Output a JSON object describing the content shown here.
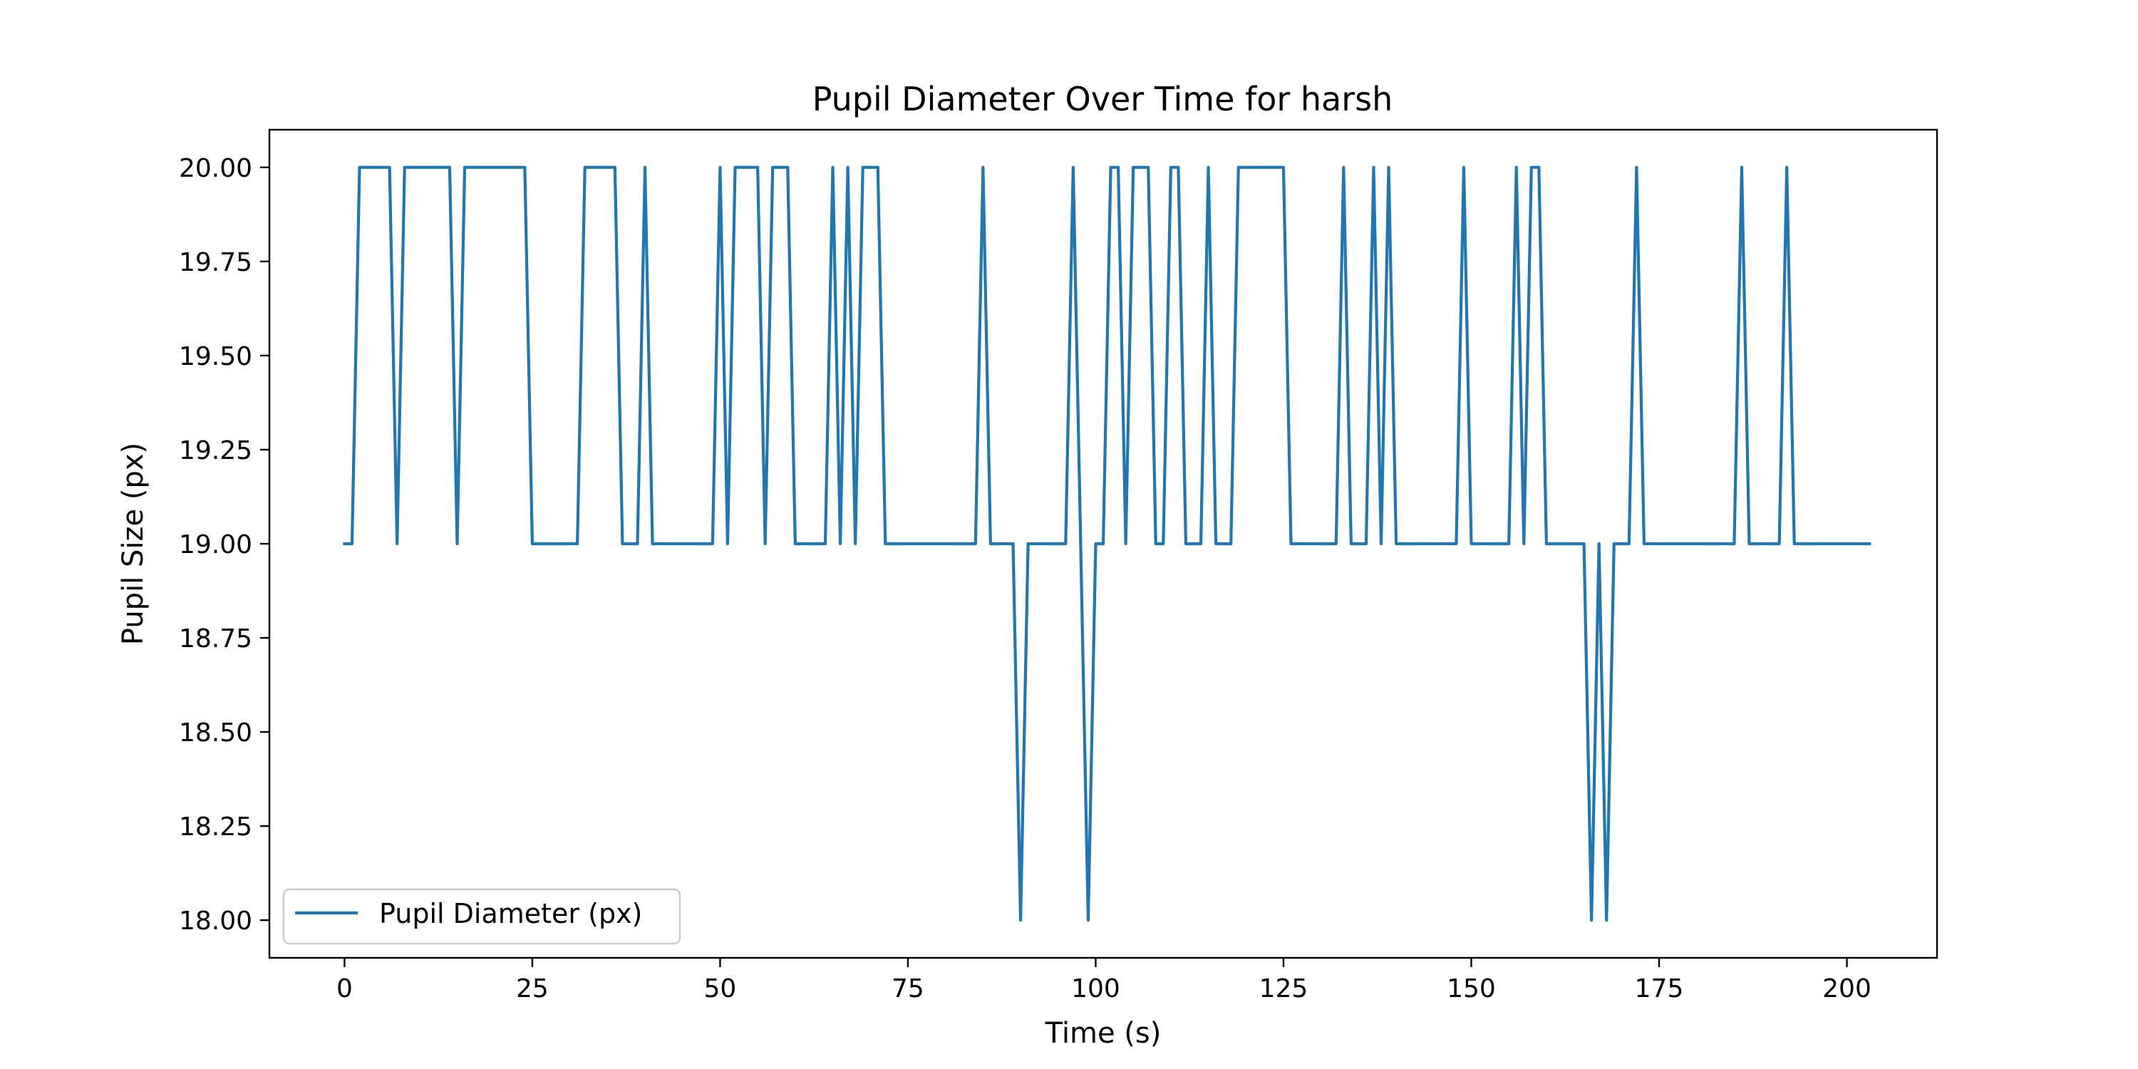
{
  "chart_data": {
    "type": "line",
    "title": "Pupil Diameter Over Time for harsh",
    "xlabel": "Time (s)",
    "ylabel": "Pupil Size (px)",
    "xlim": [
      -10,
      212
    ],
    "ylim": [
      17.9,
      20.1
    ],
    "xticks": [
      0,
      25,
      50,
      75,
      100,
      125,
      150,
      175,
      200
    ],
    "yticks": [
      18.0,
      18.25,
      18.5,
      18.75,
      19.0,
      19.25,
      19.5,
      19.75,
      20.0
    ],
    "xtick_labels": [
      "0",
      "25",
      "50",
      "75",
      "100",
      "125",
      "150",
      "175",
      "200"
    ],
    "ytick_labels": [
      "18.00",
      "18.25",
      "18.50",
      "18.75",
      "19.00",
      "19.25",
      "19.50",
      "19.75",
      "20.00"
    ],
    "grid": false,
    "legend": "lower-left",
    "line_color": "#1f77b4",
    "series": [
      {
        "name": "Pupil Diameter (px)",
        "values": [
          19,
          19,
          20,
          20,
          20,
          20,
          20,
          19,
          20,
          20,
          20,
          20,
          20,
          20,
          20,
          19,
          20,
          20,
          20,
          20,
          20,
          20,
          20,
          20,
          20,
          19,
          19,
          19,
          19,
          19,
          19,
          19,
          20,
          20,
          20,
          20,
          20,
          19,
          19,
          19,
          20,
          19,
          19,
          19,
          19,
          19,
          19,
          19,
          19,
          19,
          20,
          19,
          20,
          20,
          20,
          20,
          19,
          20,
          20,
          20,
          19,
          19,
          19,
          19,
          19,
          20,
          19,
          20,
          19,
          20,
          20,
          20,
          19,
          19,
          19,
          19,
          19,
          19,
          19,
          19,
          19,
          19,
          19,
          19,
          19,
          20,
          19,
          19,
          19,
          19,
          18,
          19,
          19,
          19,
          19,
          19,
          19,
          20,
          19,
          18,
          19,
          19,
          20,
          20,
          19,
          20,
          20,
          20,
          19,
          19,
          20,
          20,
          19,
          19,
          19,
          20,
          19,
          19,
          19,
          20,
          20,
          20,
          20,
          20,
          20,
          20,
          19,
          19,
          19,
          19,
          19,
          19,
          19,
          20,
          19,
          19,
          19,
          20,
          19,
          20,
          19,
          19,
          19,
          19,
          19,
          19,
          19,
          19,
          19,
          20,
          19,
          19,
          19,
          19,
          19,
          19,
          20,
          19,
          20,
          20,
          19,
          19,
          19,
          19,
          19,
          19,
          18,
          19,
          18,
          19,
          19,
          19,
          20,
          19,
          19,
          19,
          19,
          19,
          19,
          19,
          19,
          19,
          19,
          19,
          19,
          19,
          20,
          19,
          19,
          19,
          19,
          19,
          20,
          19,
          19,
          19,
          19,
          19,
          19,
          19,
          19,
          19,
          19,
          19
        ]
      }
    ]
  }
}
